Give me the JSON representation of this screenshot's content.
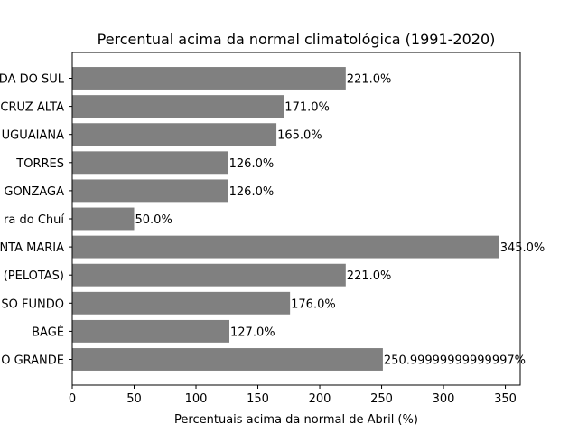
{
  "chart_data": {
    "type": "bar",
    "orientation": "horizontal",
    "title": "Percentual acima da normal climatológica (1991-2020)",
    "xlabel": "Percentuais acima da normal de Abril (%)",
    "ylabel": "",
    "xlim": [
      0,
      362
    ],
    "xticks": [
      0,
      50,
      100,
      150,
      200,
      250,
      300,
      350
    ],
    "grid": false,
    "bar_color": "#808080",
    "categories": [
      "DA DO SUL",
      "CRUZ ALTA",
      "UGUAIANA",
      "TORRES",
      "GONZAGA",
      "ra do Chuí",
      "NTA MARIA",
      "(PELOTAS)",
      "SO FUNDO",
      "BAGÉ",
      "O GRANDE"
    ],
    "values": [
      221.0,
      171.0,
      165.0,
      126.0,
      126.0,
      50.0,
      345.0,
      221.0,
      176.0,
      127.0,
      250.99999999999997
    ],
    "data_labels": [
      "221.0%",
      "171.0%",
      "165.0%",
      "126.0%",
      "126.0%",
      "50.0%",
      "345.0%",
      "221.0%",
      "176.0%",
      "127.0%",
      "250.99999999999997%"
    ]
  }
}
